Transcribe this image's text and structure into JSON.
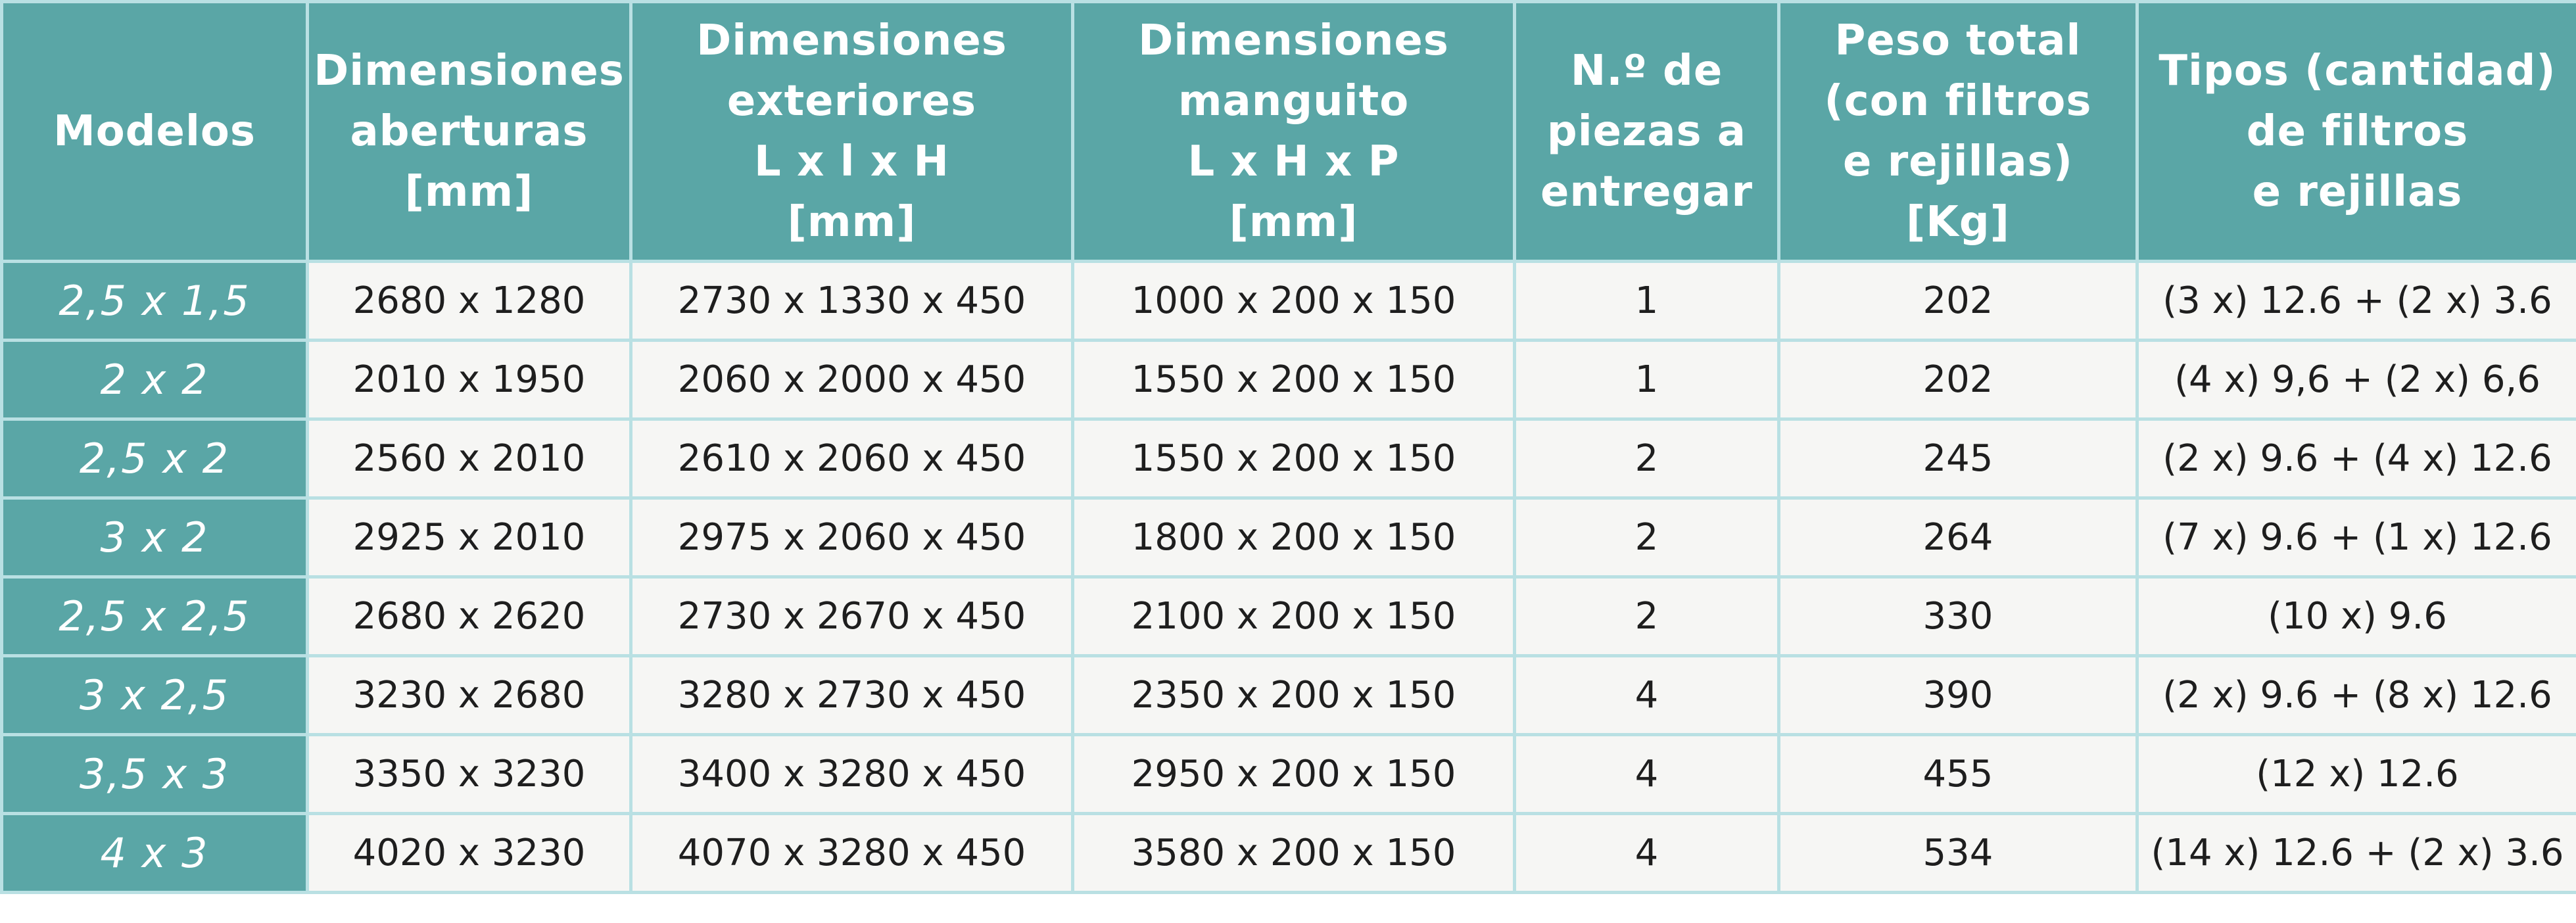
{
  "headers": [
    {
      "lines": [
        "Modelos"
      ]
    },
    {
      "lines": [
        "Dimensiones",
        "aberturas",
        "[mm]"
      ]
    },
    {
      "lines": [
        "Dimensiones",
        "exteriores",
        "L x l x H",
        "[mm]"
      ]
    },
    {
      "lines": [
        "Dimensiones",
        "manguito",
        "L x H x P",
        "[mm]"
      ]
    },
    {
      "lines": [
        "N.º de",
        "piezas a",
        "entregar"
      ]
    },
    {
      "lines": [
        "Peso total",
        "(con filtros",
        "e rejillas)",
        "[Kg]"
      ]
    },
    {
      "lines": [
        "Tipos (cantidad)",
        "de filtros",
        "e rejillas"
      ]
    }
  ],
  "rows": [
    {
      "model": "2,5 x 1,5",
      "aberturas": "2680 x 1280",
      "exteriores": "2730 x 1330 x 450",
      "manguito": "1000 x 200 x 150",
      "piezas": "1",
      "peso": "202",
      "filtros": "(3 x) 12.6 + (2 x) 3.6"
    },
    {
      "model": "2 x 2",
      "aberturas": "2010 x 1950",
      "exteriores": "2060 x 2000 x 450",
      "manguito": "1550 x 200 x 150",
      "piezas": "1",
      "peso": "202",
      "filtros": "(4 x) 9,6 + (2 x) 6,6"
    },
    {
      "model": "2,5 x 2",
      "aberturas": "2560 x 2010",
      "exteriores": "2610 x 2060 x 450",
      "manguito": "1550 x 200 x 150",
      "piezas": "2",
      "peso": "245",
      "filtros": "(2 x) 9.6 + (4 x) 12.6"
    },
    {
      "model": "3 x 2",
      "aberturas": "2925 x 2010",
      "exteriores": "2975 x 2060 x 450",
      "manguito": "1800 x 200 x 150",
      "piezas": "2",
      "peso": "264",
      "filtros": "(7 x) 9.6 + (1 x) 12.6"
    },
    {
      "model": "2,5 x 2,5",
      "aberturas": "2680 x 2620",
      "exteriores": "2730 x 2670 x 450",
      "manguito": "2100 x 200 x 150",
      "piezas": "2",
      "peso": "330",
      "filtros": "(10 x) 9.6"
    },
    {
      "model": "3 x 2,5",
      "aberturas": "3230 x 2680",
      "exteriores": "3280 x 2730 x 450",
      "manguito": "2350 x 200 x 150",
      "piezas": "4",
      "peso": "390",
      "filtros": "(2 x) 9.6 + (8 x) 12.6"
    },
    {
      "model": "3,5 x 3",
      "aberturas": "3350 x 3230",
      "exteriores": "3400 x 3280 x 450",
      "manguito": "2950 x 200 x 150",
      "piezas": "4",
      "peso": "455",
      "filtros": "(12 x) 12.6"
    },
    {
      "model": "4 x 3",
      "aberturas": "4020 x 3230",
      "exteriores": "4070 x 3280 x 450",
      "manguito": "3580 x 200 x 150",
      "piezas": "4",
      "peso": "534",
      "filtros": "(14 x) 12.6 + (2 x) 3.6"
    }
  ]
}
